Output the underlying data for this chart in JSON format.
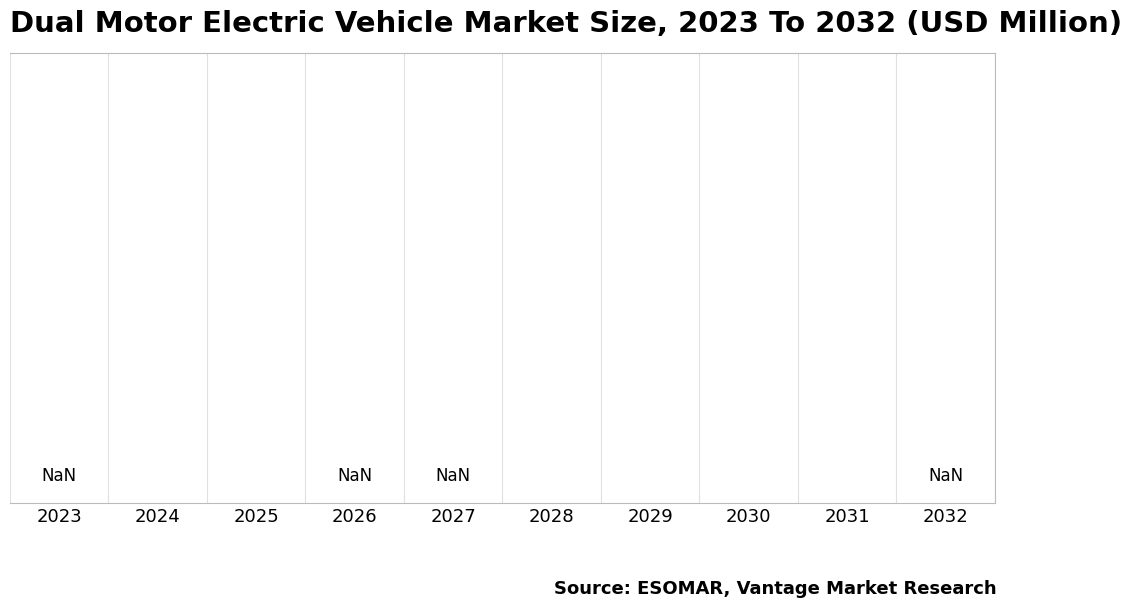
{
  "title": "Dual Motor Electric Vehicle Market Size, 2023 To 2032 (USD Million)",
  "years": [
    "2023",
    "2024",
    "2025",
    "2026",
    "2027",
    "2028",
    "2029",
    "2030",
    "2031",
    "2032"
  ],
  "nan_labels": {
    "2023": "NaN",
    "2026": "NaN",
    "2027": "NaN",
    "2032": "NaN"
  },
  "source_text": "Source: ESOMAR, Vantage Market Research",
  "background_color": "#ffffff",
  "plot_bg_color": "#ffffff",
  "grid_color": "#e0e0e0",
  "title_fontsize": 21,
  "source_fontsize": 13,
  "tick_fontsize": 13,
  "nan_fontsize": 12,
  "border_color": "#cccccc",
  "spine_color": "#bbbbbb"
}
